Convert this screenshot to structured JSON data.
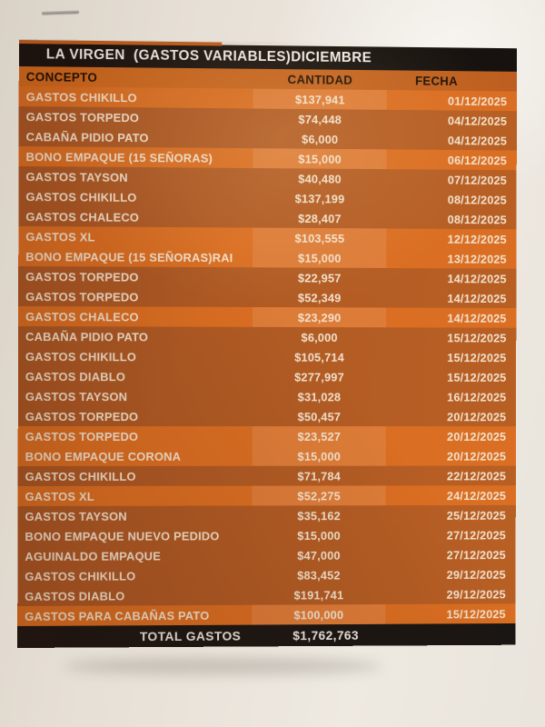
{
  "document": {
    "title": "LA VIRGEN  (GASTOS VARIABLES)DICIEMBRE",
    "columns": [
      "CONCEPTO",
      "CANTIDAD",
      "FECHA"
    ],
    "rows": [
      {
        "concepto": "GASTOS CHIKILLO",
        "cantidad": "$137,941",
        "fecha": "01/12/2025",
        "shade": "light"
      },
      {
        "concepto": "GASTOS TORPEDO",
        "cantidad": "$74,448",
        "fecha": "04/12/2025",
        "shade": "dark"
      },
      {
        "concepto": "CABAÑA PIDIO PATO",
        "cantidad": "$6,000",
        "fecha": "04/12/2025",
        "shade": "dark"
      },
      {
        "concepto": "BONO EMPAQUE (15 SEÑORAS)",
        "cantidad": "$15,000",
        "fecha": "06/12/2025",
        "shade": "light"
      },
      {
        "concepto": "GASTOS TAYSON",
        "cantidad": "$40,480",
        "fecha": "07/12/2025",
        "shade": "dark"
      },
      {
        "concepto": "GASTOS CHIKILLO",
        "cantidad": "$137,199",
        "fecha": "08/12/2025",
        "shade": "dark"
      },
      {
        "concepto": "GASTOS CHALECO",
        "cantidad": "$28,407",
        "fecha": "08/12/2025",
        "shade": "dark"
      },
      {
        "concepto": "GASTOS XL",
        "cantidad": "$103,555",
        "fecha": "12/12/2025",
        "shade": "light"
      },
      {
        "concepto": "BONO EMPAQUE (15 SEÑORAS)RAI",
        "cantidad": "$15,000",
        "fecha": "13/12/2025",
        "shade": "light"
      },
      {
        "concepto": "GASTOS TORPEDO",
        "cantidad": "$22,957",
        "fecha": "14/12/2025",
        "shade": "dark"
      },
      {
        "concepto": "GASTOS TORPEDO",
        "cantidad": "$52,349",
        "fecha": "14/12/2025",
        "shade": "dark"
      },
      {
        "concepto": "GASTOS CHALECO",
        "cantidad": "$23,290",
        "fecha": "14/12/2025",
        "shade": "light"
      },
      {
        "concepto": "CABAÑA PIDIO PATO",
        "cantidad": "$6,000",
        "fecha": "15/12/2025",
        "shade": "dark"
      },
      {
        "concepto": "GASTOS CHIKILLO",
        "cantidad": "$105,714",
        "fecha": "15/12/2025",
        "shade": "dark"
      },
      {
        "concepto": "GASTOS DIABLO",
        "cantidad": "$277,997",
        "fecha": "15/12/2025",
        "shade": "dark"
      },
      {
        "concepto": "GASTOS TAYSON",
        "cantidad": "$31,028",
        "fecha": "16/12/2025",
        "shade": "dark"
      },
      {
        "concepto": "GASTOS TORPEDO",
        "cantidad": "$50,457",
        "fecha": "20/12/2025",
        "shade": "dark"
      },
      {
        "concepto": "GASTOS TORPEDO",
        "cantidad": "$23,527",
        "fecha": "20/12/2025",
        "shade": "light"
      },
      {
        "concepto": "BONO EMPAQUE CORONA",
        "cantidad": "$15,000",
        "fecha": "20/12/2025",
        "shade": "light"
      },
      {
        "concepto": "GASTOS CHIKILLO",
        "cantidad": "$71,784",
        "fecha": "22/12/2025",
        "shade": "dark"
      },
      {
        "concepto": "GASTOS XL",
        "cantidad": "$52,275",
        "fecha": "24/12/2025",
        "shade": "light"
      },
      {
        "concepto": "GASTOS TAYSON",
        "cantidad": "$35,162",
        "fecha": "25/12/2025",
        "shade": "dark"
      },
      {
        "concepto": "BONO EMPAQUE NUEVO PEDIDO",
        "cantidad": "$15,000",
        "fecha": "27/12/2025",
        "shade": "dark"
      },
      {
        "concepto": "AGUINALDO EMPAQUE",
        "cantidad": "$47,000",
        "fecha": "27/12/2025",
        "shade": "dark"
      },
      {
        "concepto": "GASTOS CHIKILLO",
        "cantidad": "$83,452",
        "fecha": "29/12/2025",
        "shade": "dark"
      },
      {
        "concepto": "GASTOS DIABLO",
        "cantidad": "$191,741",
        "fecha": "29/12/2025",
        "shade": "dark"
      },
      {
        "concepto": "GASTOS PARA CABAÑAS PATO",
        "cantidad": "$100,000",
        "fecha": "15/12/2025",
        "shade": "light"
      }
    ],
    "total": {
      "label": "TOTAL GASTOS",
      "value": "$1,762,763"
    },
    "colors": {
      "row_light": "#da6e22",
      "row_dark": "#ae5923",
      "header_bg": "#c96520",
      "title_bar": "#17120f",
      "total_bar": "#1a1613",
      "row_text": "#f2e2cd",
      "header_text": "#1d1005",
      "paper": "#e8e2d8"
    }
  }
}
